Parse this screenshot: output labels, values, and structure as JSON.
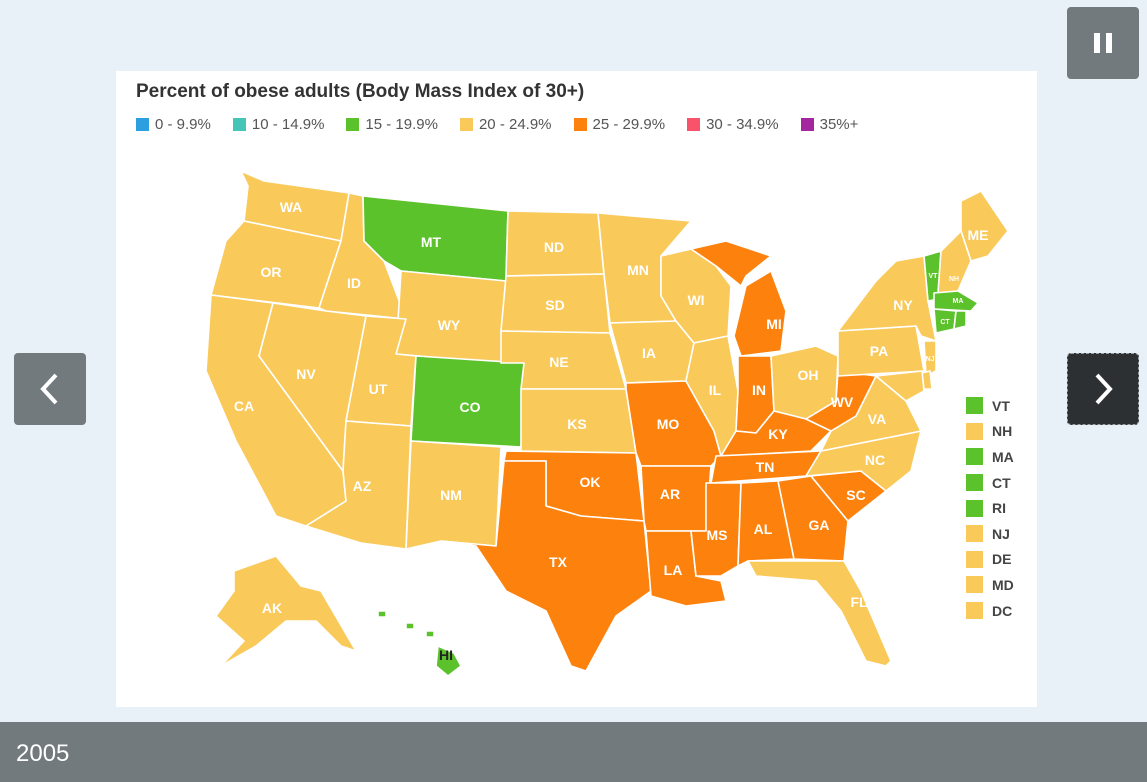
{
  "map": {
    "title": "Percent of obese adults (Body Mass Index of 30+)",
    "legend": [
      {
        "label": "0 - 9.9%",
        "color": "#2b9fe0"
      },
      {
        "label": "10 - 14.9%",
        "color": "#45c4b8"
      },
      {
        "label": "15 - 19.9%",
        "color": "#5cc22c"
      },
      {
        "label": "20 - 24.9%",
        "color": "#f9c95a"
      },
      {
        "label": "25 - 29.9%",
        "color": "#fc820d"
      },
      {
        "label": "30 - 34.9%",
        "color": "#f8536b"
      },
      {
        "label": "35%+",
        "color": "#a4279f"
      }
    ],
    "states": {
      "WA": "20 - 24.9%",
      "OR": "20 - 24.9%",
      "CA": "20 - 24.9%",
      "ID": "20 - 24.9%",
      "NV": "20 - 24.9%",
      "MT": "15 - 19.9%",
      "WY": "20 - 24.9%",
      "UT": "20 - 24.9%",
      "CO": "15 - 19.9%",
      "AZ": "20 - 24.9%",
      "NM": "20 - 24.9%",
      "ND": "20 - 24.9%",
      "SD": "20 - 24.9%",
      "NE": "20 - 24.9%",
      "KS": "20 - 24.9%",
      "OK": "25 - 29.9%",
      "TX": "25 - 29.9%",
      "MN": "20 - 24.9%",
      "IA": "20 - 24.9%",
      "MO": "25 - 29.9%",
      "AR": "25 - 29.9%",
      "LA": "25 - 29.9%",
      "WI": "20 - 24.9%",
      "IL": "20 - 24.9%",
      "MI": "25 - 29.9%",
      "IN": "25 - 29.9%",
      "OH": "20 - 24.9%",
      "KY": "25 - 29.9%",
      "TN": "25 - 29.9%",
      "MS": "25 - 29.9%",
      "AL": "25 - 29.9%",
      "GA": "25 - 29.9%",
      "FL": "20 - 24.9%",
      "SC": "25 - 29.9%",
      "NC": "20 - 24.9%",
      "VA": "20 - 24.9%",
      "WV": "25 - 29.9%",
      "PA": "20 - 24.9%",
      "NY": "20 - 24.9%",
      "ME": "20 - 24.9%",
      "AK": "20 - 24.9%",
      "HI": "15 - 19.9%"
    },
    "small_states": [
      {
        "code": "VT",
        "bin": "15 - 19.9%"
      },
      {
        "code": "NH",
        "bin": "20 - 24.9%"
      },
      {
        "code": "MA",
        "bin": "15 - 19.9%"
      },
      {
        "code": "CT",
        "bin": "15 - 19.9%"
      },
      {
        "code": "RI",
        "bin": "15 - 19.9%"
      },
      {
        "code": "NJ",
        "bin": "20 - 24.9%"
      },
      {
        "code": "DE",
        "bin": "20 - 24.9%"
      },
      {
        "code": "MD",
        "bin": "20 - 24.9%"
      },
      {
        "code": "DC",
        "bin": "20 - 24.9%"
      }
    ]
  },
  "slider": {
    "year": "2005",
    "pause_icon": "pause-icon",
    "prev_icon": "chevron-left-icon",
    "next_icon": "chevron-right-icon"
  }
}
